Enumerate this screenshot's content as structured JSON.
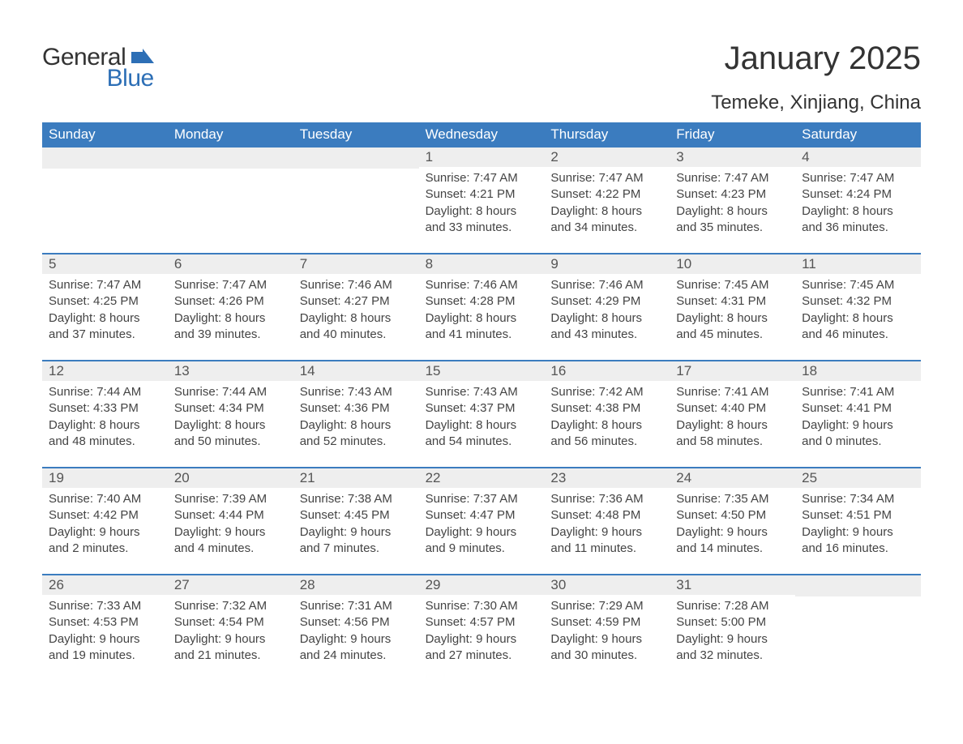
{
  "brand": {
    "general": "General",
    "blue": "Blue"
  },
  "colors": {
    "header_blue": "#3b7cbf",
    "row_stripe": "#eeeeee",
    "text": "#333333",
    "body_text": "#444444",
    "logo_blue": "#2d6fb6"
  },
  "title": "January 2025",
  "location": "Temeke, Xinjiang, China",
  "weekdays": [
    "Sunday",
    "Monday",
    "Tuesday",
    "Wednesday",
    "Thursday",
    "Friday",
    "Saturday"
  ],
  "weeks": [
    [
      null,
      null,
      null,
      {
        "n": "1",
        "sunrise": "Sunrise: 7:47 AM",
        "sunset": "Sunset: 4:21 PM",
        "daylight": "Daylight: 8 hours and 33 minutes."
      },
      {
        "n": "2",
        "sunrise": "Sunrise: 7:47 AM",
        "sunset": "Sunset: 4:22 PM",
        "daylight": "Daylight: 8 hours and 34 minutes."
      },
      {
        "n": "3",
        "sunrise": "Sunrise: 7:47 AM",
        "sunset": "Sunset: 4:23 PM",
        "daylight": "Daylight: 8 hours and 35 minutes."
      },
      {
        "n": "4",
        "sunrise": "Sunrise: 7:47 AM",
        "sunset": "Sunset: 4:24 PM",
        "daylight": "Daylight: 8 hours and 36 minutes."
      }
    ],
    [
      {
        "n": "5",
        "sunrise": "Sunrise: 7:47 AM",
        "sunset": "Sunset: 4:25 PM",
        "daylight": "Daylight: 8 hours and 37 minutes."
      },
      {
        "n": "6",
        "sunrise": "Sunrise: 7:47 AM",
        "sunset": "Sunset: 4:26 PM",
        "daylight": "Daylight: 8 hours and 39 minutes."
      },
      {
        "n": "7",
        "sunrise": "Sunrise: 7:46 AM",
        "sunset": "Sunset: 4:27 PM",
        "daylight": "Daylight: 8 hours and 40 minutes."
      },
      {
        "n": "8",
        "sunrise": "Sunrise: 7:46 AM",
        "sunset": "Sunset: 4:28 PM",
        "daylight": "Daylight: 8 hours and 41 minutes."
      },
      {
        "n": "9",
        "sunrise": "Sunrise: 7:46 AM",
        "sunset": "Sunset: 4:29 PM",
        "daylight": "Daylight: 8 hours and 43 minutes."
      },
      {
        "n": "10",
        "sunrise": "Sunrise: 7:45 AM",
        "sunset": "Sunset: 4:31 PM",
        "daylight": "Daylight: 8 hours and 45 minutes."
      },
      {
        "n": "11",
        "sunrise": "Sunrise: 7:45 AM",
        "sunset": "Sunset: 4:32 PM",
        "daylight": "Daylight: 8 hours and 46 minutes."
      }
    ],
    [
      {
        "n": "12",
        "sunrise": "Sunrise: 7:44 AM",
        "sunset": "Sunset: 4:33 PM",
        "daylight": "Daylight: 8 hours and 48 minutes."
      },
      {
        "n": "13",
        "sunrise": "Sunrise: 7:44 AM",
        "sunset": "Sunset: 4:34 PM",
        "daylight": "Daylight: 8 hours and 50 minutes."
      },
      {
        "n": "14",
        "sunrise": "Sunrise: 7:43 AM",
        "sunset": "Sunset: 4:36 PM",
        "daylight": "Daylight: 8 hours and 52 minutes."
      },
      {
        "n": "15",
        "sunrise": "Sunrise: 7:43 AM",
        "sunset": "Sunset: 4:37 PM",
        "daylight": "Daylight: 8 hours and 54 minutes."
      },
      {
        "n": "16",
        "sunrise": "Sunrise: 7:42 AM",
        "sunset": "Sunset: 4:38 PM",
        "daylight": "Daylight: 8 hours and 56 minutes."
      },
      {
        "n": "17",
        "sunrise": "Sunrise: 7:41 AM",
        "sunset": "Sunset: 4:40 PM",
        "daylight": "Daylight: 8 hours and 58 minutes."
      },
      {
        "n": "18",
        "sunrise": "Sunrise: 7:41 AM",
        "sunset": "Sunset: 4:41 PM",
        "daylight": "Daylight: 9 hours and 0 minutes."
      }
    ],
    [
      {
        "n": "19",
        "sunrise": "Sunrise: 7:40 AM",
        "sunset": "Sunset: 4:42 PM",
        "daylight": "Daylight: 9 hours and 2 minutes."
      },
      {
        "n": "20",
        "sunrise": "Sunrise: 7:39 AM",
        "sunset": "Sunset: 4:44 PM",
        "daylight": "Daylight: 9 hours and 4 minutes."
      },
      {
        "n": "21",
        "sunrise": "Sunrise: 7:38 AM",
        "sunset": "Sunset: 4:45 PM",
        "daylight": "Daylight: 9 hours and 7 minutes."
      },
      {
        "n": "22",
        "sunrise": "Sunrise: 7:37 AM",
        "sunset": "Sunset: 4:47 PM",
        "daylight": "Daylight: 9 hours and 9 minutes."
      },
      {
        "n": "23",
        "sunrise": "Sunrise: 7:36 AM",
        "sunset": "Sunset: 4:48 PM",
        "daylight": "Daylight: 9 hours and 11 minutes."
      },
      {
        "n": "24",
        "sunrise": "Sunrise: 7:35 AM",
        "sunset": "Sunset: 4:50 PM",
        "daylight": "Daylight: 9 hours and 14 minutes."
      },
      {
        "n": "25",
        "sunrise": "Sunrise: 7:34 AM",
        "sunset": "Sunset: 4:51 PM",
        "daylight": "Daylight: 9 hours and 16 minutes."
      }
    ],
    [
      {
        "n": "26",
        "sunrise": "Sunrise: 7:33 AM",
        "sunset": "Sunset: 4:53 PM",
        "daylight": "Daylight: 9 hours and 19 minutes."
      },
      {
        "n": "27",
        "sunrise": "Sunrise: 7:32 AM",
        "sunset": "Sunset: 4:54 PM",
        "daylight": "Daylight: 9 hours and 21 minutes."
      },
      {
        "n": "28",
        "sunrise": "Sunrise: 7:31 AM",
        "sunset": "Sunset: 4:56 PM",
        "daylight": "Daylight: 9 hours and 24 minutes."
      },
      {
        "n": "29",
        "sunrise": "Sunrise: 7:30 AM",
        "sunset": "Sunset: 4:57 PM",
        "daylight": "Daylight: 9 hours and 27 minutes."
      },
      {
        "n": "30",
        "sunrise": "Sunrise: 7:29 AM",
        "sunset": "Sunset: 4:59 PM",
        "daylight": "Daylight: 9 hours and 30 minutes."
      },
      {
        "n": "31",
        "sunrise": "Sunrise: 7:28 AM",
        "sunset": "Sunset: 5:00 PM",
        "daylight": "Daylight: 9 hours and 32 minutes."
      },
      null
    ]
  ]
}
